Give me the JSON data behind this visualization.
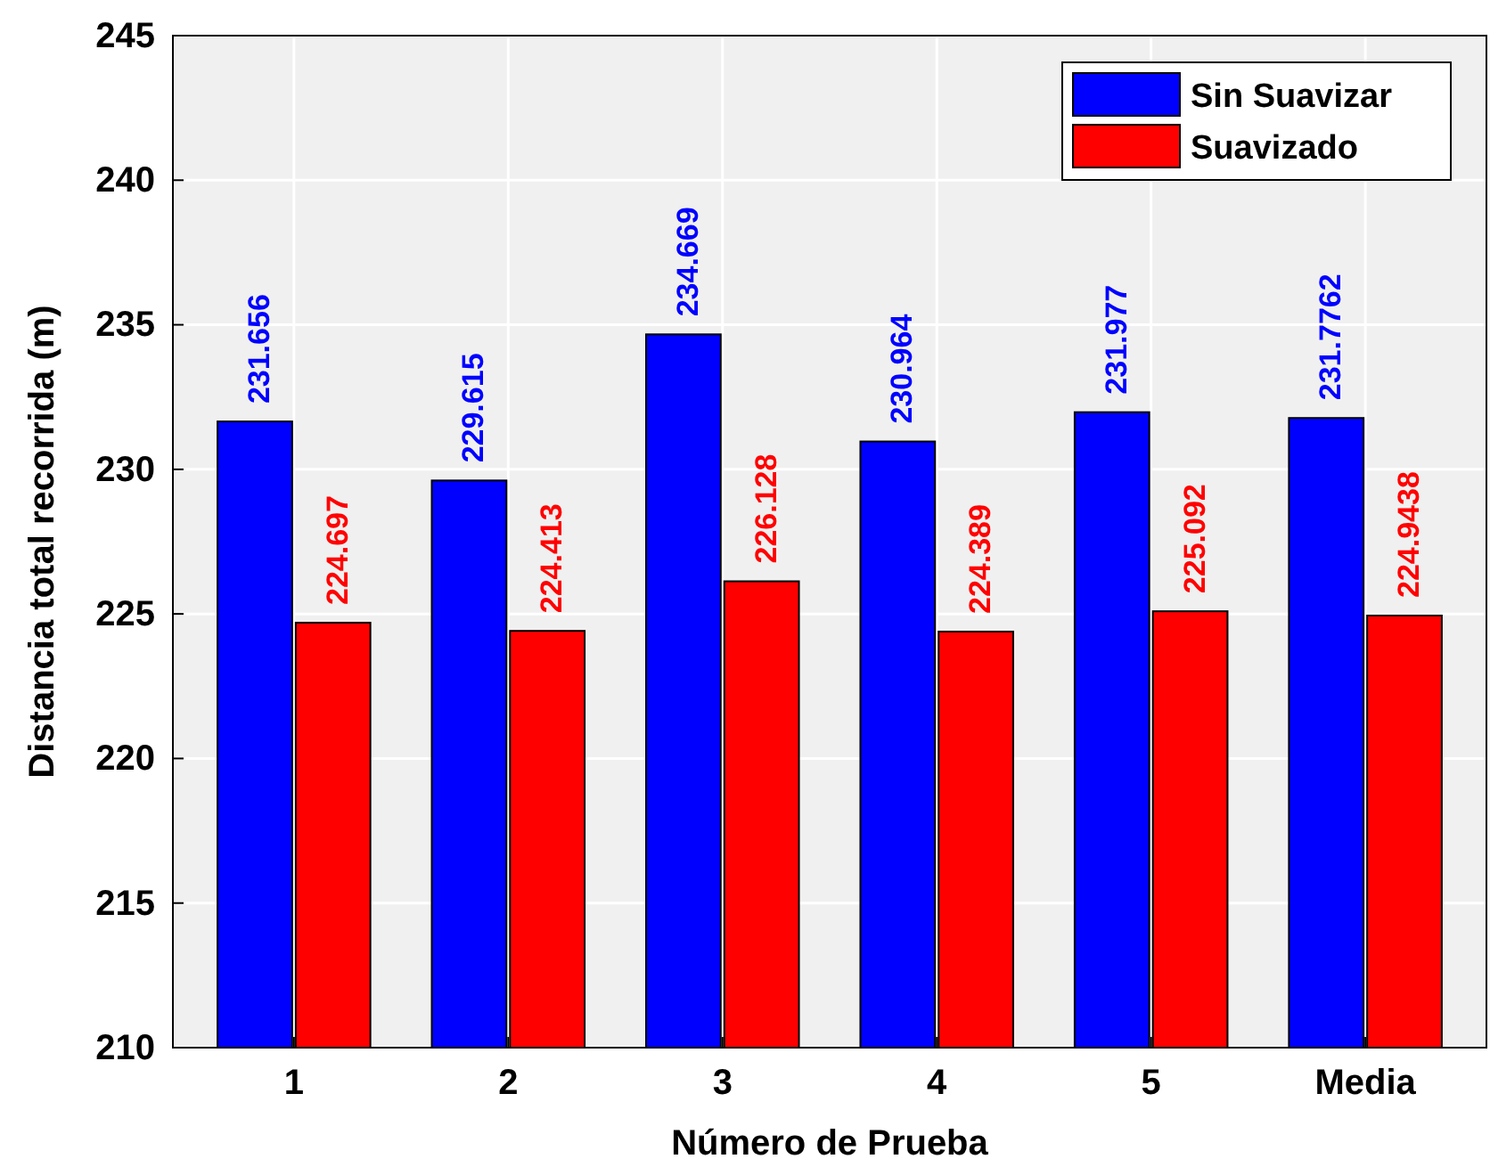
{
  "chart_data": {
    "type": "bar",
    "xlabel": "Número de Prueba",
    "ylabel": "Distancia total recorrida (m)",
    "categories": [
      "1",
      "2",
      "3",
      "4",
      "5",
      "Media"
    ],
    "series": [
      {
        "name": "Sin Suavizar",
        "color": "#0000ff",
        "values": [
          231.656,
          229.615,
          234.669,
          230.964,
          231.977,
          231.7762
        ],
        "value_labels": [
          "231.656",
          "229.615",
          "234.669",
          "230.964",
          "231.977",
          "231.7762"
        ]
      },
      {
        "name": "Suavizado",
        "color": "#ff0000",
        "values": [
          224.697,
          224.413,
          226.128,
          224.389,
          225.092,
          224.9438
        ],
        "value_labels": [
          "224.697",
          "224.413",
          "226.128",
          "224.389",
          "225.092",
          "224.9438"
        ]
      }
    ],
    "ylim": [
      210,
      245
    ],
    "yticks": [
      210,
      215,
      220,
      225,
      230,
      235,
      240,
      245
    ],
    "grid": true,
    "legend": "top right"
  }
}
